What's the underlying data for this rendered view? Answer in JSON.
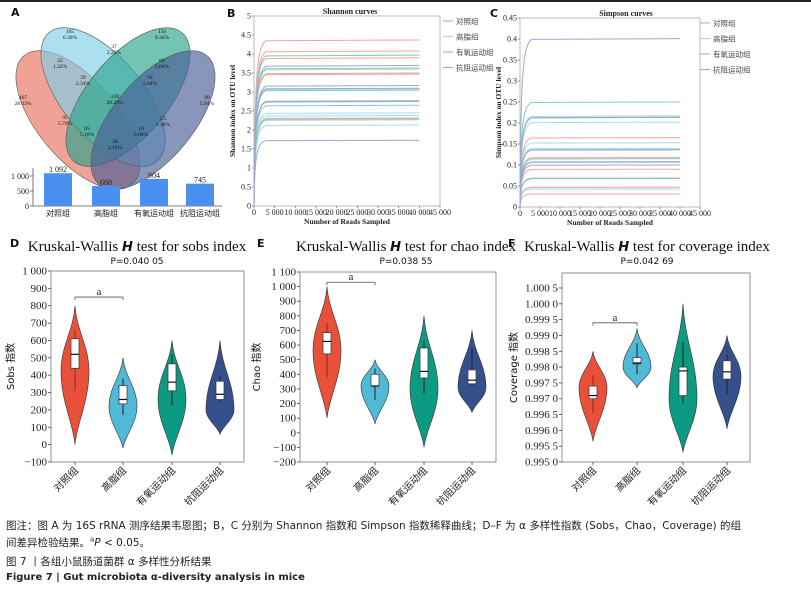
{
  "figure": {
    "caption_note_line1": "图注：图 A 为 16S rRNA 测序结果韦恩图；B，C 分别为 Shannon 指数和 Simpson 指数稀释曲线；D–F 为 α 多样性指数 (Sobs，Chao，Coverage) 的组",
    "caption_note_line2_prefix": "间差异检验结果。",
    "caption_note_line2_sup": "a",
    "caption_note_line2_p": "P",
    "caption_note_line2_suffix": " < 0.05。",
    "title_cn": "图 7 丨各组小鼠肠道菌群 α 多样性分析结果",
    "title_en": "Figure 7  |  Gut microbiota α-diversity analysis in mice"
  },
  "groups": [
    "对照组",
    "高脂组",
    "有氧运动组",
    "抗阻运动组"
  ],
  "colors": {
    "control": "#e8503a",
    "highfat": "#4fb9d6",
    "aerobic": "#0c9b82",
    "resistance": "#35508a",
    "bar": "#4a90f0",
    "line_control": "#f2a49a",
    "line_highfat": "#a9dbe8",
    "line_aerobic": "#7fcdbf",
    "line_resistance": "#9ea9cf"
  },
  "chart_data": [
    {
      "panel": "A",
      "type": "venn",
      "sets": [
        "对照组",
        "高脂组",
        "有氧运动组",
        "抗阻运动组"
      ],
      "regions": [
        {
          "count": "467",
          "pct": "28.03%",
          "region": "control only"
        },
        {
          "count": "105",
          "pct": "6.30%",
          "region": "highfat only"
        },
        {
          "count": "156",
          "pct": "9.36%",
          "region": "aerobic only"
        },
        {
          "count": "99",
          "pct": "5.94%",
          "region": "resistance only"
        },
        {
          "count": "22",
          "pct": "1.32%",
          "region": "control+highfat"
        },
        {
          "count": "37",
          "pct": "2.22%",
          "region": "highfat+aerobic"
        },
        {
          "count": "60",
          "pct": "3.60%",
          "region": "aerobic+resistance"
        },
        {
          "count": "39",
          "pct": "2.34%",
          "region": "control+highfat+aerobic"
        },
        {
          "count": "94",
          "pct": "5.64%",
          "region": "highfat+aerobic+resistance"
        },
        {
          "count": "338",
          "pct": "20.29%",
          "region": "all four"
        },
        {
          "count": "95",
          "pct": "5.70%",
          "region": "control+aerobic"
        },
        {
          "count": "23",
          "pct": "1.38%",
          "region": "highfat+resistance"
        },
        {
          "count": "85",
          "pct": "5.10%",
          "region": "control+aerobic+resistance"
        },
        {
          "count": "10",
          "pct": "0.60%",
          "region": "control+highfat+resistance"
        },
        {
          "count": "36",
          "pct": "2.16%",
          "region": "control+resistance"
        }
      ]
    },
    {
      "panel": "A-bar",
      "type": "bar",
      "categories": [
        "对照组",
        "高脂组",
        "有氧运动组",
        "抗阻运动组"
      ],
      "values": [
        1092,
        668,
        904,
        745
      ],
      "value_labels": [
        "1 092",
        "668",
        "904",
        "745"
      ],
      "yticks": [
        "0",
        "500",
        "1 000"
      ],
      "ylim": [
        0,
        1150
      ]
    },
    {
      "panel": "B",
      "type": "line",
      "title": "Shannon curves",
      "xlabel": "Number of Reads Sampled",
      "ylabel": "Shannon index on OTU level",
      "xlim": [
        0,
        45000
      ],
      "ylim": [
        0,
        5
      ],
      "xticks": [
        "0",
        "5 000",
        "10 000",
        "15 000",
        "20 000",
        "25 000",
        "30 000",
        "35 000",
        "40 000",
        "45 000"
      ],
      "yticks": [
        "0",
        "0.5",
        "1",
        "1.5",
        "2",
        "2.5",
        "3",
        "3.5",
        "4",
        "4.5",
        "5"
      ],
      "legend": [
        "对照组",
        "高脂组",
        "有氧运动组",
        "抗阻运动组"
      ],
      "legend_position": "right",
      "series": [
        {
          "group": "对照组",
          "plateaus": [
            4.37,
            4.08,
            3.9,
            3.5,
            3.47,
            2.27
          ]
        },
        {
          "group": "高脂组",
          "plateaus": [
            3.6,
            3.08,
            2.45,
            2.38,
            2.32,
            2.13
          ]
        },
        {
          "group": "有氧运动组",
          "plateaus": [
            3.97,
            3.63,
            3.05,
            2.65,
            2.3
          ]
        },
        {
          "group": "抗阻运动组",
          "plateaus": [
            3.7,
            3.17,
            3.1,
            2.77,
            2.75,
            1.73
          ]
        }
      ],
      "x_end": 40000
    },
    {
      "panel": "C",
      "type": "line",
      "title": "Simpson curves",
      "xlabel": "Number of Reads Sampled",
      "ylabel": "Simpson index on OTU level",
      "xlim": [
        0,
        45000
      ],
      "ylim": [
        0,
        0.45
      ],
      "xticks": [
        "0",
        "5 000",
        "10 000",
        "15 000",
        "20 000",
        "25 000",
        "30 000",
        "35 000",
        "40 000",
        "45 000"
      ],
      "yticks": [
        "0",
        "0.05",
        "0.1",
        "0.15",
        "0.2",
        "0.25",
        "0.3",
        "0.35",
        "0.4",
        "0.45"
      ],
      "legend": [
        "对照组",
        "高脂组",
        "有氧运动组",
        "抗阻运动组"
      ],
      "legend_position": "right",
      "series": [
        {
          "group": "对照组",
          "plateaus": [
            0.165,
            0.118,
            0.09,
            0.069,
            0.047,
            0.031
          ]
        },
        {
          "group": "高脂组",
          "plateaus": [
            0.217,
            0.202,
            0.153,
            0.14,
            0.106,
            0.043
          ]
        },
        {
          "group": "有氧运动组",
          "plateaus": [
            0.25,
            0.213,
            0.137,
            0.115,
            0.068
          ]
        },
        {
          "group": "抗阻运动组",
          "plateaus": [
            0.401,
            0.214,
            0.136,
            0.108,
            0.1
          ]
        }
      ],
      "x_end": 40000
    },
    {
      "panel": "D",
      "type": "violin",
      "title_prefix": "Kruskal-Wallis ",
      "title_italic": "H",
      "title_suffix": " test for sobs index",
      "pvalue": "P=0.040 05",
      "ylabel": "Sobs 指数",
      "ylim": [
        -100,
        1000
      ],
      "yticks": [
        "−100",
        "0",
        "100",
        "200",
        "300",
        "400",
        "500",
        "600",
        "700",
        "800",
        "900",
        "1 000"
      ],
      "categories": [
        "对照组",
        "高脂组",
        "有氧运动组",
        "抗阻运动组"
      ],
      "significance": {
        "from": 0,
        "to": 1,
        "label": "a",
        "y": 850
      },
      "violins": [
        {
          "min": 0,
          "max": 800,
          "widest": 420,
          "q1": 440,
          "median": 520,
          "q3": 610,
          "wlo": 310,
          "whi": 660
        },
        {
          "min": -20,
          "max": 500,
          "widest": 220,
          "q1": 235,
          "median": 260,
          "q3": 340,
          "wlo": 170,
          "whi": 380
        },
        {
          "min": -60,
          "max": 600,
          "widest": 260,
          "q1": 310,
          "median": 360,
          "q3": 465,
          "wlo": 225,
          "whi": 520
        },
        {
          "min": 60,
          "max": 600,
          "widest": 200,
          "q1": 260,
          "median": 290,
          "q3": 365,
          "wlo": 245,
          "whi": 400
        }
      ]
    },
    {
      "panel": "E",
      "type": "violin",
      "title_prefix": "Kruskal-Wallis ",
      "title_italic": "H",
      "title_suffix": " test for chao index",
      "pvalue": "P=0.038 55",
      "ylabel": "Chao 指数",
      "ylim": [
        -200,
        1100
      ],
      "yticks": [
        "−200",
        "−100",
        "0",
        "100",
        "200",
        "300",
        "400",
        "500",
        "600",
        "700",
        "800",
        "900",
        "1 000",
        "1 100"
      ],
      "categories": [
        "对照组",
        "高脂组",
        "有氧运动组",
        "抗阻运动组"
      ],
      "significance": {
        "from": 0,
        "to": 1,
        "label": "a",
        "y": 1030
      },
      "violins": [
        {
          "min": 100,
          "max": 1000,
          "widest": 560,
          "q1": 540,
          "median": 625,
          "q3": 685,
          "wlo": 380,
          "whi": 750
        },
        {
          "min": 60,
          "max": 500,
          "widest": 320,
          "q1": 320,
          "median": 320,
          "q3": 400,
          "wlo": 225,
          "whi": 440
        },
        {
          "min": -100,
          "max": 800,
          "widest": 300,
          "q1": 375,
          "median": 420,
          "q3": 580,
          "wlo": 270,
          "whi": 635
        },
        {
          "min": 140,
          "max": 700,
          "widest": 310,
          "q1": 335,
          "median": 360,
          "q3": 430,
          "wlo": 320,
          "whi": 580
        }
      ]
    },
    {
      "panel": "F",
      "type": "violin",
      "title_prefix": "Kruskal-Wallis ",
      "title_italic": "H",
      "title_suffix": " test for coverage index",
      "pvalue": "P=0.042 69",
      "ylabel": "Coverage 指数",
      "ylim": [
        0.995,
        1.0005
      ],
      "yticks": [
        "0.995 0",
        "0.995 5",
        "0.996 0",
        "0.996 5",
        "0.997 0",
        "0.997 5",
        "0.998 0",
        "0.998 5",
        "0.999 0",
        "0.999 5",
        "1.000 0",
        "1.000 5"
      ],
      "categories": [
        "对照组",
        "高脂组",
        "有氧运动组",
        "抗阻运动组"
      ],
      "significance": {
        "from": 0,
        "to": 1,
        "label": "a",
        "y": 0.9994
      },
      "violins": [
        {
          "min": 0.99565,
          "max": 0.9985,
          "widest": 0.99735,
          "q1": 0.997,
          "median": 0.9971,
          "q3": 0.9974,
          "wlo": 0.99655,
          "whi": 0.99775
        },
        {
          "min": 0.99735,
          "max": 0.99922,
          "widest": 0.998,
          "q1": 0.9981,
          "median": 0.99813,
          "q3": 0.9983,
          "wlo": 0.99777,
          "whi": 0.99875
        },
        {
          "min": 0.9953,
          "max": 1.0,
          "widest": 0.997,
          "q1": 0.9971,
          "median": 0.99788,
          "q3": 0.998,
          "wlo": 0.99685,
          "whi": 0.9988
        },
        {
          "min": 0.99605,
          "max": 0.999,
          "widest": 0.9977,
          "q1": 0.99762,
          "median": 0.99785,
          "q3": 0.9982,
          "wlo": 0.99712,
          "whi": 0.9984
        }
      ]
    }
  ]
}
